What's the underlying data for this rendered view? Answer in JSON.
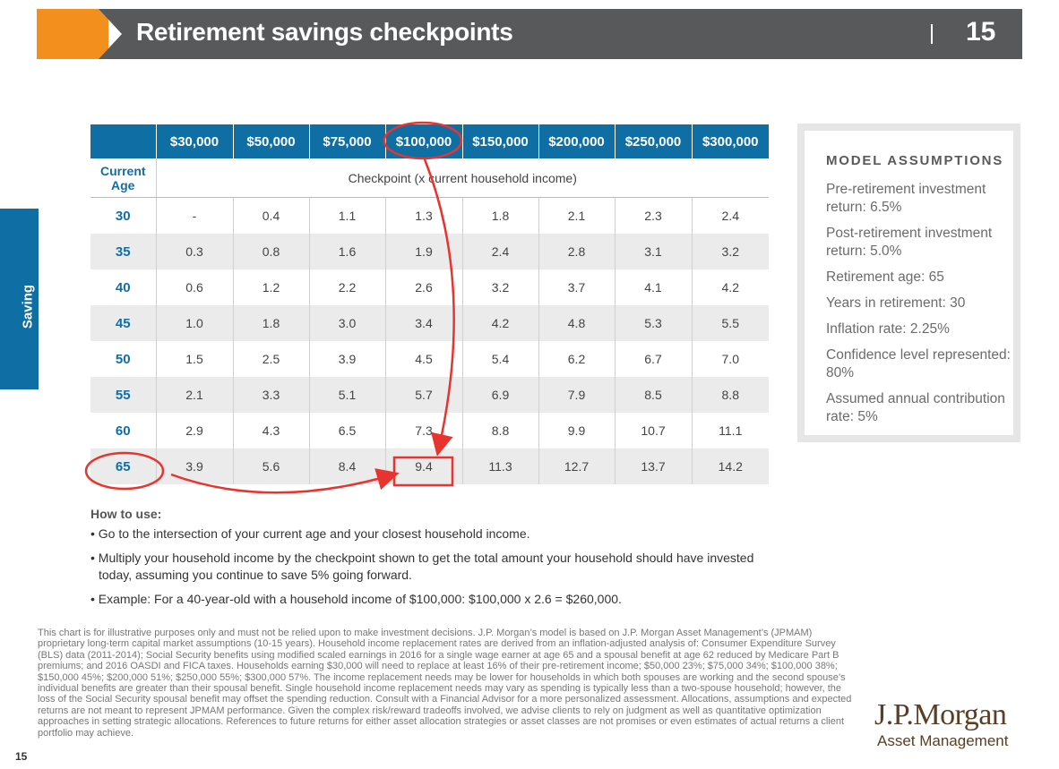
{
  "header": {
    "title": "Retirement savings checkpoints",
    "page_number": "15",
    "accent_color": "#f3901d",
    "bar_color": "#58595b"
  },
  "side_tab": {
    "label": "Saving",
    "color": "#0f6fa5"
  },
  "table": {
    "income_headers": [
      "$30,000",
      "$50,000",
      "$75,000",
      "$100,000",
      "$150,000",
      "$200,000",
      "$250,000",
      "$300,000"
    ],
    "age_header_line1": "Current",
    "age_header_line2": "Age",
    "checkpoint_label": "Checkpoint (x current household income)",
    "rows": [
      {
        "age": "30",
        "values": [
          "-",
          "0.4",
          "1.1",
          "1.3",
          "1.8",
          "2.1",
          "2.3",
          "2.4"
        ]
      },
      {
        "age": "35",
        "values": [
          "0.3",
          "0.8",
          "1.6",
          "1.9",
          "2.4",
          "2.8",
          "3.1",
          "3.2"
        ]
      },
      {
        "age": "40",
        "values": [
          "0.6",
          "1.2",
          "2.2",
          "2.6",
          "3.2",
          "3.7",
          "4.1",
          "4.2"
        ]
      },
      {
        "age": "45",
        "values": [
          "1.0",
          "1.8",
          "3.0",
          "3.4",
          "4.2",
          "4.8",
          "5.3",
          "5.5"
        ]
      },
      {
        "age": "50",
        "values": [
          "1.5",
          "2.5",
          "3.9",
          "4.5",
          "5.4",
          "6.2",
          "6.7",
          "7.0"
        ]
      },
      {
        "age": "55",
        "values": [
          "2.1",
          "3.3",
          "5.1",
          "5.7",
          "6.9",
          "7.9",
          "8.5",
          "8.8"
        ]
      },
      {
        "age": "60",
        "values": [
          "2.9",
          "4.3",
          "6.5",
          "7.3",
          "8.8",
          "9.9",
          "10.7",
          "11.1"
        ]
      },
      {
        "age": "65",
        "values": [
          "3.9",
          "5.6",
          "8.4",
          "9.4",
          "11.3",
          "12.7",
          "13.7",
          "14.2"
        ]
      }
    ]
  },
  "assumptions": {
    "title": "MODEL ASSUMPTIONS",
    "items": [
      "Pre-retirement investment return: 6.5%",
      "Post-retirement investment return: 5.0%",
      "Retirement age: 65",
      "Years in retirement: 30",
      "Inflation rate: 2.25%",
      "Confidence level represented: 80%",
      "Assumed annual contribution rate: 5%"
    ]
  },
  "how_to_use": {
    "title": "How to use:",
    "items": [
      "• Go to the intersection of your current age and your closest household income.",
      "• Multiply your household income by the checkpoint shown to get the total amount your household should have invested today, assuming you continue to save 5% going forward.",
      "• Example: For a 40-year-old with a household income of $100,000: $100,000 x 2.6 = $260,000."
    ]
  },
  "disclaimer": "This chart is for illustrative purposes only and must not be relied upon to make investment decisions. J.P. Morgan’s model is based on J.P. Morgan Asset Management’s (JPMAM) proprietary long-term capital market assumptions (10-15 years). Household income replacement rates are derived from an inflation-adjusted analysis of: Consumer Expenditure Survey (BLS) data (2011-2014); Social Security benefits using modified scaled earnings in 2016 for a single wage earner at age 65 and a spousal benefit at age 62 reduced by Medicare Part B premiums; and 2016 OASDI and FICA taxes. Households earning $30,000 will need to replace at least 16% of their pre-retirement income; $50,000 23%; $75,000 34%; $100,000 38%; $150,000 45%; $200,000 51%; $250,000 55%; $300,000 57%. The income replacement needs may be lower for households in which both spouses are working and the second spouse’s individual benefits are greater than their spousal benefit. Single household income replacement needs may vary as spending is typically less than a two-spouse household; however, the loss of the Social Security spousal benefit may offset the spending reduction. Consult with a Financial Advisor for a more personalized assessment. Allocations, assumptions and expected returns are not meant to represent JPMAM performance. Given the complex risk/reward tradeoffs involved, we advise clients to rely on judgment as well as quantitative optimization approaches in setting strategic allocations. References to future returns for either asset allocation strategies or asset classes are not promises or even estimates of actual returns a client portfolio may achieve.",
  "logo": {
    "main": "J.P.Morgan",
    "sub": "Asset Management"
  },
  "footer_page": "15",
  "annotation_color": "#e8342f"
}
